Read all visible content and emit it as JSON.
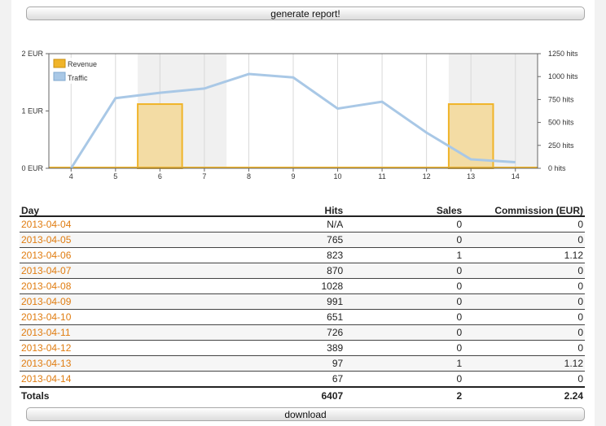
{
  "buttons": {
    "generate": "generate report!",
    "download": "download"
  },
  "chart_data": {
    "type": "bar+line",
    "categories": [
      "4",
      "5",
      "6",
      "7",
      "8",
      "9",
      "10",
      "11",
      "12",
      "13",
      "14"
    ],
    "series": [
      {
        "name": "Revenue",
        "type": "bar",
        "axis": "left",
        "color": "#f0b429",
        "values": [
          0,
          0,
          1.12,
          0,
          0,
          0,
          0,
          0,
          0,
          1.12,
          0
        ]
      },
      {
        "name": "Traffic",
        "type": "line",
        "axis": "right",
        "color": "#a9c8e6",
        "values": [
          0,
          765,
          823,
          870,
          1028,
          991,
          651,
          726,
          389,
          97,
          67
        ]
      }
    ],
    "left_axis": {
      "ticks": [
        "0 EUR",
        "1 EUR",
        "2 EUR"
      ],
      "range": [
        0,
        2
      ]
    },
    "right_axis": {
      "ticks": [
        "0 hits",
        "250 hits",
        "500 hits",
        "750 hits",
        "1000 hits",
        "1250 hits"
      ],
      "range": [
        0,
        1250
      ]
    },
    "grid": true,
    "legend_position": "top-left"
  },
  "table": {
    "headers": {
      "day": "Day",
      "hits": "Hits",
      "sales": "Sales",
      "commission": "Commission (EUR)"
    },
    "rows": [
      {
        "day": "2013-04-04",
        "hits": "N/A",
        "sales": "0",
        "commission": "0"
      },
      {
        "day": "2013-04-05",
        "hits": "765",
        "sales": "0",
        "commission": "0"
      },
      {
        "day": "2013-04-06",
        "hits": "823",
        "sales": "1",
        "commission": "1.12"
      },
      {
        "day": "2013-04-07",
        "hits": "870",
        "sales": "0",
        "commission": "0"
      },
      {
        "day": "2013-04-08",
        "hits": "1028",
        "sales": "0",
        "commission": "0"
      },
      {
        "day": "2013-04-09",
        "hits": "991",
        "sales": "0",
        "commission": "0"
      },
      {
        "day": "2013-04-10",
        "hits": "651",
        "sales": "0",
        "commission": "0"
      },
      {
        "day": "2013-04-11",
        "hits": "726",
        "sales": "0",
        "commission": "0"
      },
      {
        "day": "2013-04-12",
        "hits": "389",
        "sales": "0",
        "commission": "0"
      },
      {
        "day": "2013-04-13",
        "hits": "97",
        "sales": "1",
        "commission": "1.12"
      },
      {
        "day": "2013-04-14",
        "hits": "67",
        "sales": "0",
        "commission": "0"
      }
    ],
    "totals": {
      "label": "Totals",
      "hits": "6407",
      "sales": "2",
      "commission": "2.24"
    }
  }
}
